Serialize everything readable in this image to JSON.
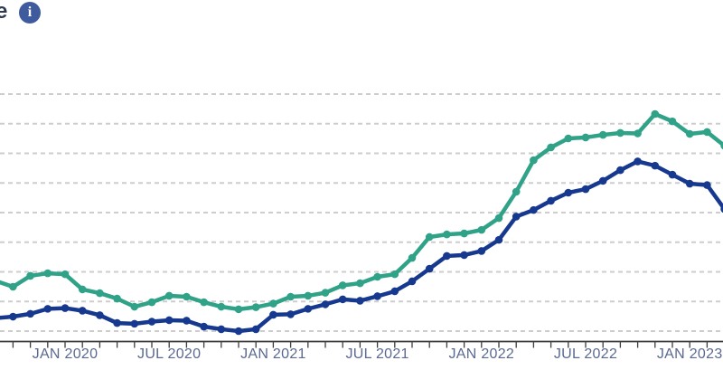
{
  "header": {
    "title_fragment": "e",
    "info_icon_glyph": "i"
  },
  "colors": {
    "background": "#ffffff",
    "grid": "#cdcdcd",
    "axis": "#3d3d3d",
    "tick_label": "#5a6990",
    "title_text": "#2e3a50",
    "info_icon_bg": "#3f5b9d",
    "info_icon_fg": "#ffffff",
    "series_green": "#2fa287",
    "series_navy": "#16398f"
  },
  "chart_data": {
    "type": "line",
    "title": "",
    "grid": "dashed-horizontal",
    "legend_visible": false,
    "y_axis_labels_visible": false,
    "ylim": [
      0,
      100
    ],
    "y_gridline_values": [
      0,
      12.5,
      25,
      37.5,
      50,
      62.5,
      75,
      87.5,
      100
    ],
    "x": [
      "Sep 2019",
      "Oct 2019",
      "Nov 2019",
      "Dec 2019",
      "Jan 2020",
      "Feb 2020",
      "Mar 2020",
      "Apr 2020",
      "May 2020",
      "Jun 2020",
      "Jul 2020",
      "Aug 2020",
      "Sep 2020",
      "Oct 2020",
      "Nov 2020",
      "Dec 2020",
      "Jan 2021",
      "Feb 2021",
      "Mar 2021",
      "Apr 2021",
      "May 2021",
      "Jun 2021",
      "Jul 2021",
      "Aug 2021",
      "Sep 2021",
      "Oct 2021",
      "Nov 2021",
      "Dec 2021",
      "Jan 2022",
      "Feb 2022",
      "Mar 2022",
      "Apr 2022",
      "May 2022",
      "Jun 2022",
      "Jul 2022",
      "Aug 2022",
      "Sep 2022",
      "Oct 2022",
      "Nov 2022",
      "Dec 2022",
      "Jan 2023",
      "Feb 2023",
      "Mar 2023"
    ],
    "x_tick_labels": [
      "JAN 2020",
      "JUL 2020",
      "JAN 2021",
      "JUL 2021",
      "JAN 2022",
      "JUL 2022",
      "JAN 2023"
    ],
    "x_tick_label_indices": [
      4,
      10,
      16,
      22,
      28,
      34,
      40
    ],
    "series": [
      {
        "name": "green-line",
        "color": "#2fa287",
        "values": [
          21.2,
          18.7,
          23.3,
          24.4,
          24.0,
          17.6,
          16.0,
          13.7,
          10.3,
          12.2,
          14.9,
          14.5,
          12.2,
          10.3,
          9.2,
          10.1,
          11.6,
          14.5,
          14.9,
          16.2,
          19.3,
          20.2,
          22.9,
          24.0,
          30.9,
          39.7,
          40.8,
          41.2,
          42.7,
          47.7,
          58.8,
          72.1,
          77.5,
          81.3,
          81.7,
          82.8,
          83.6,
          83.4,
          91.6,
          88.5,
          83.2,
          84.0,
          78.2
        ]
      },
      {
        "name": "navy-line",
        "color": "#16398f",
        "values": [
          5.5,
          6.1,
          7.3,
          9.4,
          9.7,
          8.6,
          6.7,
          3.4,
          3.1,
          4.0,
          4.6,
          4.4,
          1.9,
          0.8,
          0.0,
          0.8,
          6.9,
          7.1,
          9.4,
          11.3,
          13.4,
          12.8,
          14.7,
          16.8,
          21.0,
          26.3,
          31.7,
          32.1,
          33.8,
          38.5,
          48.3,
          51.1,
          55.0,
          58.4,
          59.9,
          63.4,
          67.9,
          71.6,
          69.8,
          66.0,
          62.2,
          61.6,
          51.5
        ]
      }
    ]
  }
}
